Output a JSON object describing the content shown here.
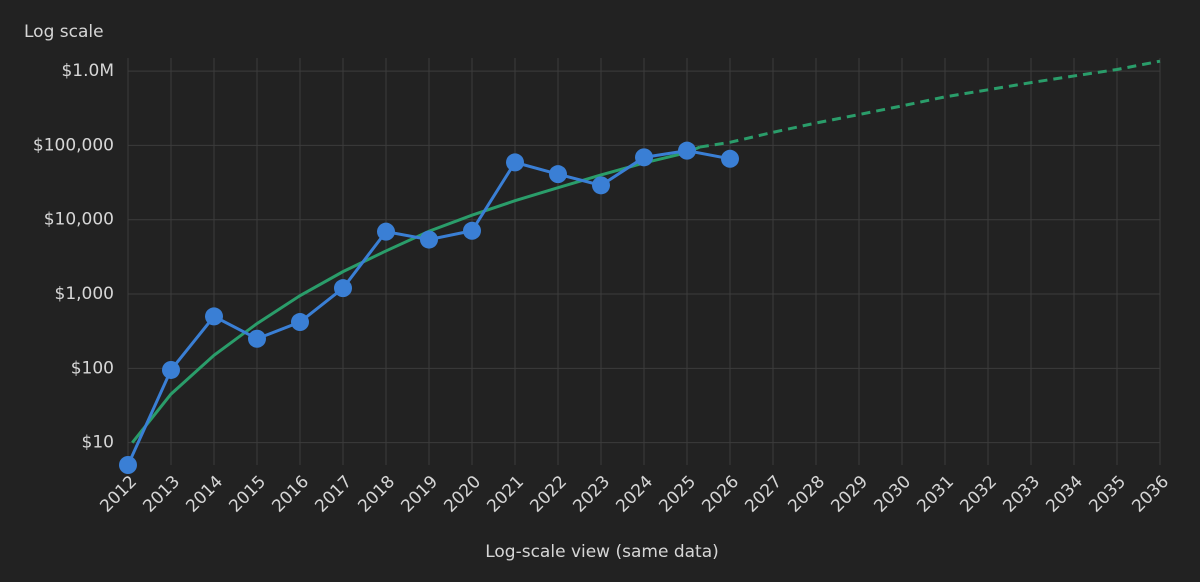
{
  "chart_data": {
    "type": "line",
    "title": "Log scale",
    "x_label": "Log-scale view (same data)",
    "log_y": true,
    "grid": true,
    "xlim": [
      2012,
      2036
    ],
    "xticks": [
      2012,
      2013,
      2014,
      2015,
      2016,
      2017,
      2018,
      2019,
      2020,
      2021,
      2022,
      2023,
      2024,
      2025,
      2026,
      2027,
      2028,
      2029,
      2030,
      2031,
      2032,
      2033,
      2034,
      2035,
      2036
    ],
    "ylim": [
      5,
      1500000
    ],
    "yticks": [
      {
        "value": 10,
        "label": "$10"
      },
      {
        "value": 100,
        "label": "$100"
      },
      {
        "value": 1000,
        "label": "$1,000"
      },
      {
        "value": 10000,
        "label": "$10,000"
      },
      {
        "value": 100000,
        "label": "$100,000"
      },
      {
        "value": 1000000,
        "label": "$1.0M"
      }
    ],
    "series": [
      {
        "color": "#2a9d6a",
        "dashed": false,
        "markers": false,
        "x": [
          2012.1,
          2013,
          2014,
          2015,
          2016,
          2017,
          2018,
          2019,
          2020,
          2021,
          2022,
          2023,
          2024,
          2025,
          2025.3
        ],
        "values": [
          10,
          45,
          150,
          400,
          950,
          2000,
          3800,
          7000,
          11500,
          18000,
          27000,
          40000,
          58000,
          80000,
          95000
        ]
      },
      {
        "color": "#2a9d6a",
        "dashed": true,
        "markers": false,
        "x": [
          2025.3,
          2026,
          2027,
          2028,
          2029,
          2030,
          2031,
          2032,
          2033,
          2034,
          2035,
          2036
        ],
        "values": [
          95000,
          110000,
          150000,
          200000,
          260000,
          340000,
          450000,
          560000,
          700000,
          860000,
          1050000,
          1360000
        ]
      },
      {
        "color": "#3a7fd5",
        "dashed": false,
        "markers": true,
        "x": [
          2012,
          2013,
          2014,
          2015,
          2016,
          2017,
          2018,
          2019,
          2020,
          2021,
          2022,
          2023,
          2024,
          2025,
          2026
        ],
        "values": [
          5,
          95,
          500,
          250,
          420,
          1200,
          6900,
          5400,
          7100,
          59000,
          41000,
          29000,
          69000,
          85000,
          66000
        ]
      }
    ]
  }
}
